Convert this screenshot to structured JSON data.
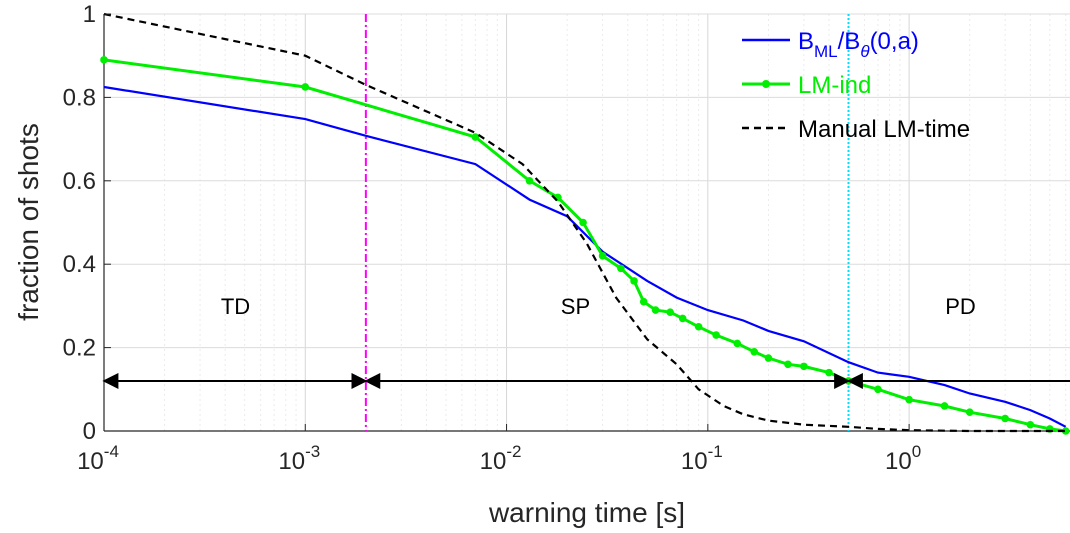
{
  "chart_data": {
    "type": "line",
    "title": "",
    "xlabel": "warning time [s]",
    "ylabel": "fraction of shots",
    "xscale": "log",
    "xlim": [
      0.0001,
      6.3
    ],
    "ylim": [
      0,
      1
    ],
    "xticks": [
      {
        "value": 0.0001,
        "base": "10",
        "exp": "-4"
      },
      {
        "value": 0.001,
        "base": "10",
        "exp": "-3"
      },
      {
        "value": 0.01,
        "base": "10",
        "exp": "-2"
      },
      {
        "value": 0.1,
        "base": "10",
        "exp": "-1"
      },
      {
        "value": 1,
        "base": "10",
        "exp": "0"
      }
    ],
    "yticks": [
      {
        "value": 0,
        "label": "0"
      },
      {
        "value": 0.2,
        "label": "0.2"
      },
      {
        "value": 0.4,
        "label": "0.4"
      },
      {
        "value": 0.6,
        "label": "0.6"
      },
      {
        "value": 0.8,
        "label": "0.8"
      },
      {
        "value": 1,
        "label": "1"
      }
    ],
    "grid": true,
    "legend_position": "top-right",
    "series": [
      {
        "name": "B_ML/B_θ(0,a)",
        "legend": {
          "base": "B",
          "sub1": "ML",
          "mid": "/B",
          "sub2": "θ",
          "tail": "(0,a)"
        },
        "color": "#0000ff",
        "style": "solid",
        "marker": "none",
        "x": [
          0.0001,
          0.001,
          0.002,
          0.007,
          0.013,
          0.02,
          0.03,
          0.05,
          0.07,
          0.1,
          0.15,
          0.2,
          0.3,
          0.5,
          0.7,
          1.0,
          1.5,
          2.0,
          3.0,
          4.0,
          5.0,
          6.0
        ],
        "y": [
          0.825,
          0.748,
          0.708,
          0.64,
          0.555,
          0.515,
          0.43,
          0.36,
          0.32,
          0.29,
          0.265,
          0.24,
          0.215,
          0.165,
          0.14,
          0.13,
          0.11,
          0.09,
          0.07,
          0.05,
          0.03,
          0.01
        ]
      },
      {
        "name": "LM-ind",
        "color": "#00ee00",
        "style": "solid",
        "marker": "dot",
        "x": [
          0.0001,
          0.001,
          0.007,
          0.013,
          0.018,
          0.024,
          0.03,
          0.037,
          0.043,
          0.048,
          0.055,
          0.065,
          0.075,
          0.09,
          0.11,
          0.14,
          0.17,
          0.2,
          0.25,
          0.3,
          0.4,
          0.5,
          0.7,
          1.0,
          1.5,
          2.0,
          3.0,
          4.0,
          5.0,
          6.0
        ],
        "y": [
          0.89,
          0.825,
          0.705,
          0.6,
          0.56,
          0.5,
          0.42,
          0.39,
          0.36,
          0.31,
          0.29,
          0.285,
          0.27,
          0.25,
          0.23,
          0.21,
          0.19,
          0.175,
          0.16,
          0.155,
          0.14,
          0.12,
          0.1,
          0.075,
          0.06,
          0.045,
          0.03,
          0.015,
          0.005,
          0.0
        ]
      },
      {
        "name": "Manual LM-time",
        "color": "#000000",
        "style": "dashed",
        "marker": "none",
        "x": [
          0.0001,
          0.001,
          0.002,
          0.007,
          0.012,
          0.018,
          0.025,
          0.035,
          0.05,
          0.07,
          0.09,
          0.12,
          0.15,
          0.2,
          0.3,
          0.5,
          0.7,
          1.0,
          2.0,
          6.0
        ],
        "y": [
          1.0,
          0.9,
          0.83,
          0.715,
          0.64,
          0.55,
          0.45,
          0.32,
          0.22,
          0.16,
          0.1,
          0.06,
          0.04,
          0.025,
          0.015,
          0.01,
          0.005,
          0.002,
          0.0,
          0.0
        ]
      }
    ],
    "vlines": [
      {
        "x": 0.002,
        "color": "#ff00ff",
        "style": "dashdot"
      },
      {
        "x": 0.5,
        "color": "#00e0ff",
        "style": "dotted"
      }
    ],
    "regions": [
      {
        "label": "TD",
        "x": 0.00045,
        "y": 0.3
      },
      {
        "label": "SP",
        "x": 0.022,
        "y": 0.3
      },
      {
        "label": "PD",
        "x": 1.8,
        "y": 0.3
      }
    ],
    "arrows": [
      {
        "x1": 0.0001,
        "x2": 0.002,
        "y": 0.12
      },
      {
        "x1": 0.002,
        "x2": 0.5,
        "y": 0.12
      },
      {
        "x1": 0.5,
        "x2": 6.3,
        "y": 0.12,
        "right_head": false
      }
    ]
  }
}
